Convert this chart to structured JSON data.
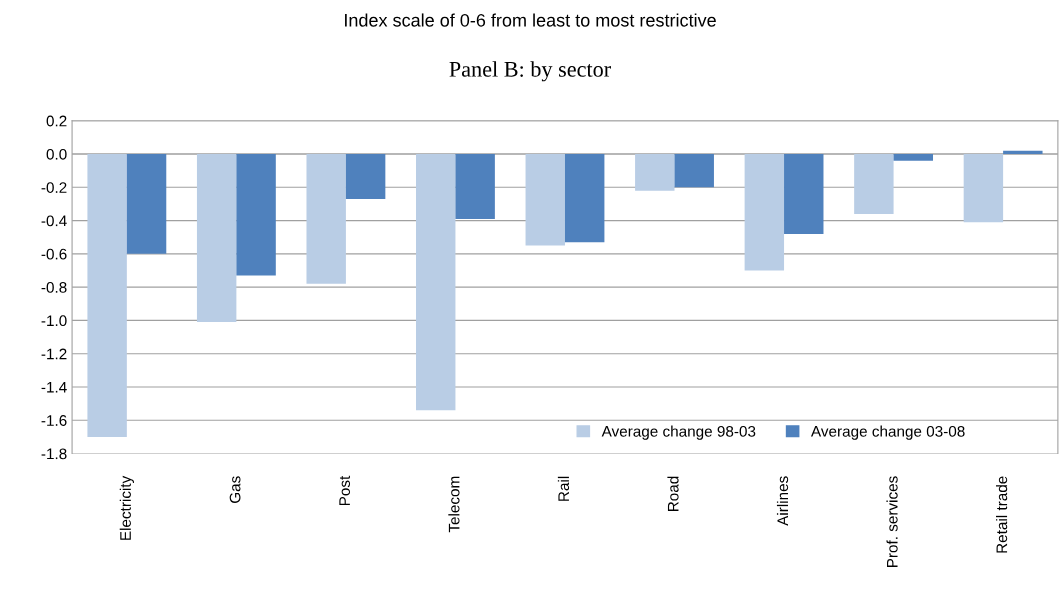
{
  "chart_data": {
    "type": "bar",
    "title": "Panel B: by sector",
    "subtitle": "Index scale of 0-6 from least to most restrictive",
    "categories": [
      "Electricity",
      "Gas",
      "Post",
      "Telecom",
      "Rail",
      "Road",
      "Airlines",
      "Prof. services",
      "Retail trade"
    ],
    "series": [
      {
        "name": "Average change 98-03",
        "color": "#b9cde5",
        "values": [
          -1.7,
          -1.01,
          -0.78,
          -1.54,
          -0.55,
          -0.22,
          -0.7,
          -0.36,
          -0.41
        ]
      },
      {
        "name": "Average change 03-08",
        "color": "#4f81bd",
        "values": [
          -0.6,
          -0.73,
          -0.27,
          -0.39,
          -0.53,
          -0.2,
          -0.48,
          -0.04,
          0.02
        ]
      }
    ],
    "ylim": [
      -1.8,
      0.2
    ],
    "yticks": [
      0.2,
      {
        "value": 0,
        "label": "0.0"
      },
      -0.2,
      -0.4,
      -0.6,
      -0.8,
      {
        "value": -1,
        "label": "-1.0"
      },
      -1.2,
      -1.4,
      -1.6,
      -1.8
    ],
    "grid": "y",
    "legend": "bottom right"
  }
}
